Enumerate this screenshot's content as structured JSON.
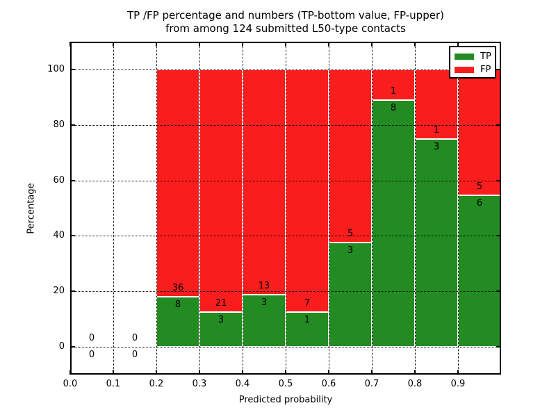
{
  "figure": {
    "background": "#ffffff"
  },
  "chart_data": {
    "type": "bar",
    "stacked": true,
    "title_lines": [
      "TP /FP percentage and numbers (TP-bottom value, FP-upper)",
      "from among 124 submitted L50-type contacts"
    ],
    "xlabel": "Predicted probability",
    "ylabel": "Percentage",
    "xlim": [
      0.0,
      1.0
    ],
    "ylim": [
      -10,
      110
    ],
    "xticks": [
      {
        "value": 0.0,
        "label": "0.0"
      },
      {
        "value": 0.1,
        "label": "0.1"
      },
      {
        "value": 0.2,
        "label": "0.2"
      },
      {
        "value": 0.3,
        "label": "0.3"
      },
      {
        "value": 0.4,
        "label": "0.4"
      },
      {
        "value": 0.5,
        "label": "0.5"
      },
      {
        "value": 0.6,
        "label": "0.6"
      },
      {
        "value": 0.7,
        "label": "0.7"
      },
      {
        "value": 0.8,
        "label": "0.8"
      },
      {
        "value": 0.9,
        "label": "0.9"
      }
    ],
    "yticks": [
      {
        "value": 0,
        "label": "0"
      },
      {
        "value": 20,
        "label": "20"
      },
      {
        "value": 40,
        "label": "40"
      },
      {
        "value": 60,
        "label": "60"
      },
      {
        "value": 80,
        "label": "80"
      },
      {
        "value": 100,
        "label": "100"
      }
    ],
    "grid": {
      "style": "dotted",
      "color": "#000000",
      "above_bars": true
    },
    "legend": {
      "position": "upper right",
      "entries": [
        {
          "label": "TP",
          "color": "#228b22"
        },
        {
          "label": "FP",
          "color": "#fa1d1d"
        }
      ]
    },
    "total_contacts": 124,
    "bins": [
      {
        "x_start": 0.0,
        "x_end": 0.1,
        "tp_count": 0,
        "fp_count": 0,
        "tp_pct": 0,
        "fp_pct": 0
      },
      {
        "x_start": 0.1,
        "x_end": 0.2,
        "tp_count": 0,
        "fp_count": 0,
        "tp_pct": 0,
        "fp_pct": 0
      },
      {
        "x_start": 0.2,
        "x_end": 0.3,
        "tp_count": 8,
        "fp_count": 36,
        "tp_pct": 18.18,
        "fp_pct": 81.82
      },
      {
        "x_start": 0.3,
        "x_end": 0.4,
        "tp_count": 3,
        "fp_count": 21,
        "tp_pct": 12.5,
        "fp_pct": 87.5
      },
      {
        "x_start": 0.4,
        "x_end": 0.5,
        "tp_count": 3,
        "fp_count": 13,
        "tp_pct": 18.75,
        "fp_pct": 81.25
      },
      {
        "x_start": 0.5,
        "x_end": 0.6,
        "tp_count": 1,
        "fp_count": 7,
        "tp_pct": 12.5,
        "fp_pct": 87.5
      },
      {
        "x_start": 0.6,
        "x_end": 0.7,
        "tp_count": 3,
        "fp_count": 5,
        "tp_pct": 37.5,
        "fp_pct": 62.5
      },
      {
        "x_start": 0.7,
        "x_end": 0.8,
        "tp_count": 8,
        "fp_count": 1,
        "tp_pct": 88.89,
        "fp_pct": 11.11
      },
      {
        "x_start": 0.8,
        "x_end": 0.9,
        "tp_count": 3,
        "fp_count": 1,
        "tp_pct": 75.0,
        "fp_pct": 25.0
      },
      {
        "x_start": 0.9,
        "x_end": 1.0,
        "tp_count": 6,
        "fp_count": 5,
        "tp_pct": 54.55,
        "fp_pct": 45.45
      }
    ]
  },
  "colors": {
    "tp": "#228b22",
    "fp": "#fa1d1d",
    "text": "#000000",
    "grid": "#000000",
    "background": "#ffffff"
  }
}
